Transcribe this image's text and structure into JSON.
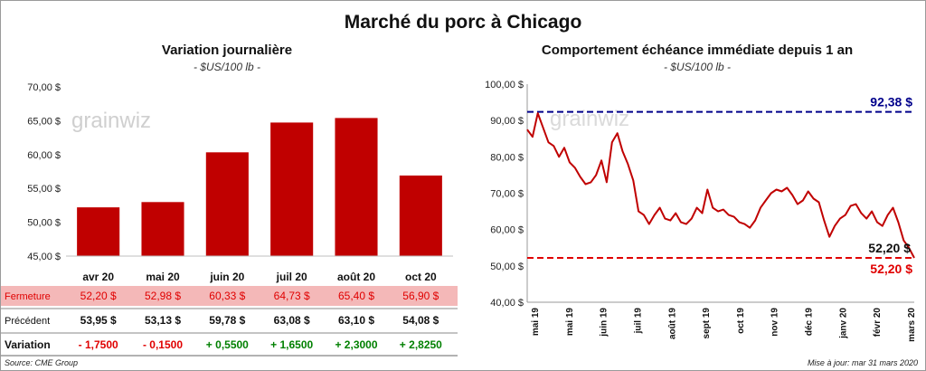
{
  "title": "Marché du porc à Chicago",
  "left": {
    "title": "Variation  journalière",
    "unit": "- $US/100 lb -",
    "watermark": "grainwiz",
    "table": {
      "rows": [
        {
          "label": "Fermeture",
          "values": [
            "52,20 $",
            "52,98 $",
            "60,33 $",
            "64,73 $",
            "65,40 $",
            "56,90 $"
          ]
        },
        {
          "label": "Précédent",
          "values": [
            "53,95 $",
            "53,13 $",
            "59,78 $",
            "63,08 $",
            "63,10 $",
            "54,08 $"
          ]
        },
        {
          "label": "Variation",
          "values": [
            "- 1,7500",
            "- 0,1500",
            "+ 0,5500",
            "+ 1,6500",
            "+ 2,3000",
            "+ 2,8250"
          ]
        }
      ]
    }
  },
  "right": {
    "title": "Comportement  échéance immédiate depuis 1 an",
    "unit": "- $US/100 lb -",
    "watermark": "grainwiz"
  },
  "footer": {
    "source": "Source: CME Group",
    "updated": "Mise à jour: mar 31 mars 2020"
  },
  "colors": {
    "bar": "#c00000",
    "line": "#c00000",
    "high_line": "#00008b",
    "low_line": "#e00000",
    "fermeture_bg": "#f4b8b8",
    "negative": "#e00000",
    "positive": "#008000"
  },
  "chart_data": [
    {
      "type": "bar",
      "title": "Variation  journalière",
      "categories": [
        "avr 20",
        "mai 20",
        "juin 20",
        "juil 20",
        "août 20",
        "oct 20"
      ],
      "values": [
        52.2,
        52.98,
        60.33,
        64.73,
        65.4,
        56.9
      ],
      "ylim": [
        45,
        70
      ],
      "yticks": [
        45,
        50,
        55,
        60,
        65,
        70
      ],
      "ytick_labels": [
        "45,00 $",
        "50,00 $",
        "55,00 $",
        "60,00 $",
        "65,00 $",
        "70,00 $"
      ],
      "grid": false
    },
    {
      "type": "line",
      "title": "Comportement  échéance immédiate depuis 1 an",
      "x_labels": [
        "mai 19",
        "mai 19",
        "juin 19",
        "juil 19",
        "août 19",
        "sept 19",
        "oct 19",
        "nov 19",
        "déc 19",
        "janv 20",
        "févr 20",
        "mars 20"
      ],
      "x_range": [
        "2019-04-01",
        "2020-03-31"
      ],
      "ylim": [
        40,
        100
      ],
      "yticks": [
        40,
        50,
        60,
        70,
        80,
        90,
        100
      ],
      "ytick_labels": [
        "40,00 $",
        "50,00 $",
        "60,00 $",
        "70,00 $",
        "80,00 $",
        "90,00 $",
        "100,00 $"
      ],
      "grid": false,
      "series": [
        {
          "x": [
            "2019-04-01",
            "2019-04-06",
            "2019-04-11",
            "2019-04-16",
            "2019-04-21",
            "2019-04-26",
            "2019-05-01",
            "2019-05-06",
            "2019-05-11",
            "2019-05-16",
            "2019-05-21",
            "2019-05-26",
            "2019-05-31",
            "2019-06-05",
            "2019-06-10",
            "2019-06-15",
            "2019-06-20",
            "2019-06-25",
            "2019-06-30",
            "2019-07-05",
            "2019-07-10",
            "2019-07-15",
            "2019-07-20",
            "2019-07-25",
            "2019-07-30",
            "2019-08-04",
            "2019-08-09",
            "2019-08-14",
            "2019-08-19",
            "2019-08-24",
            "2019-08-29",
            "2019-09-03",
            "2019-09-08",
            "2019-09-13",
            "2019-09-18",
            "2019-09-23",
            "2019-09-28",
            "2019-10-03",
            "2019-10-08",
            "2019-10-13",
            "2019-10-18",
            "2019-10-23",
            "2019-10-28",
            "2019-11-02",
            "2019-11-07",
            "2019-11-12",
            "2019-11-17",
            "2019-11-22",
            "2019-11-27",
            "2019-12-02",
            "2019-12-07",
            "2019-12-12",
            "2019-12-17",
            "2019-12-22",
            "2019-12-27",
            "2020-01-01",
            "2020-01-06",
            "2020-01-11",
            "2020-01-16",
            "2020-01-21",
            "2020-01-26",
            "2020-01-31",
            "2020-02-05",
            "2020-02-10",
            "2020-02-15",
            "2020-02-20",
            "2020-02-25",
            "2020-03-01",
            "2020-03-06",
            "2020-03-11",
            "2020-03-16",
            "2020-03-21",
            "2020-03-26",
            "2020-03-31"
          ],
          "values": [
            87.5,
            85.5,
            92.0,
            88.0,
            84.0,
            83.0,
            80.0,
            82.5,
            78.5,
            77.0,
            74.5,
            72.5,
            73.0,
            75.0,
            79.0,
            73.0,
            84.0,
            86.5,
            81.5,
            78.0,
            73.5,
            65.0,
            64.0,
            61.5,
            64.0,
            66.0,
            63.0,
            62.5,
            64.5,
            62.0,
            61.5,
            63.0,
            66.0,
            64.5,
            71.0,
            66.0,
            65.0,
            65.5,
            64.0,
            63.5,
            62.0,
            61.5,
            60.5,
            62.5,
            66.0,
            68.0,
            70.0,
            71.0,
            70.5,
            71.5,
            69.5,
            67.0,
            68.0,
            70.5,
            68.5,
            67.5,
            62.5,
            58.0,
            61.0,
            63.0,
            64.0,
            66.5,
            67.0,
            64.5,
            63.0,
            65.0,
            62.0,
            61.0,
            64.0,
            66.0,
            62.0,
            57.0,
            55.0,
            52.2
          ],
          "reference_lines": [
            {
              "value": 92.38,
              "label": "92,38 $",
              "color": "#00008b"
            },
            {
              "value": 52.2,
              "label": "52,20 $",
              "color": "#e00000"
            }
          ],
          "last_value_label": "52,20 $"
        }
      ]
    }
  ]
}
